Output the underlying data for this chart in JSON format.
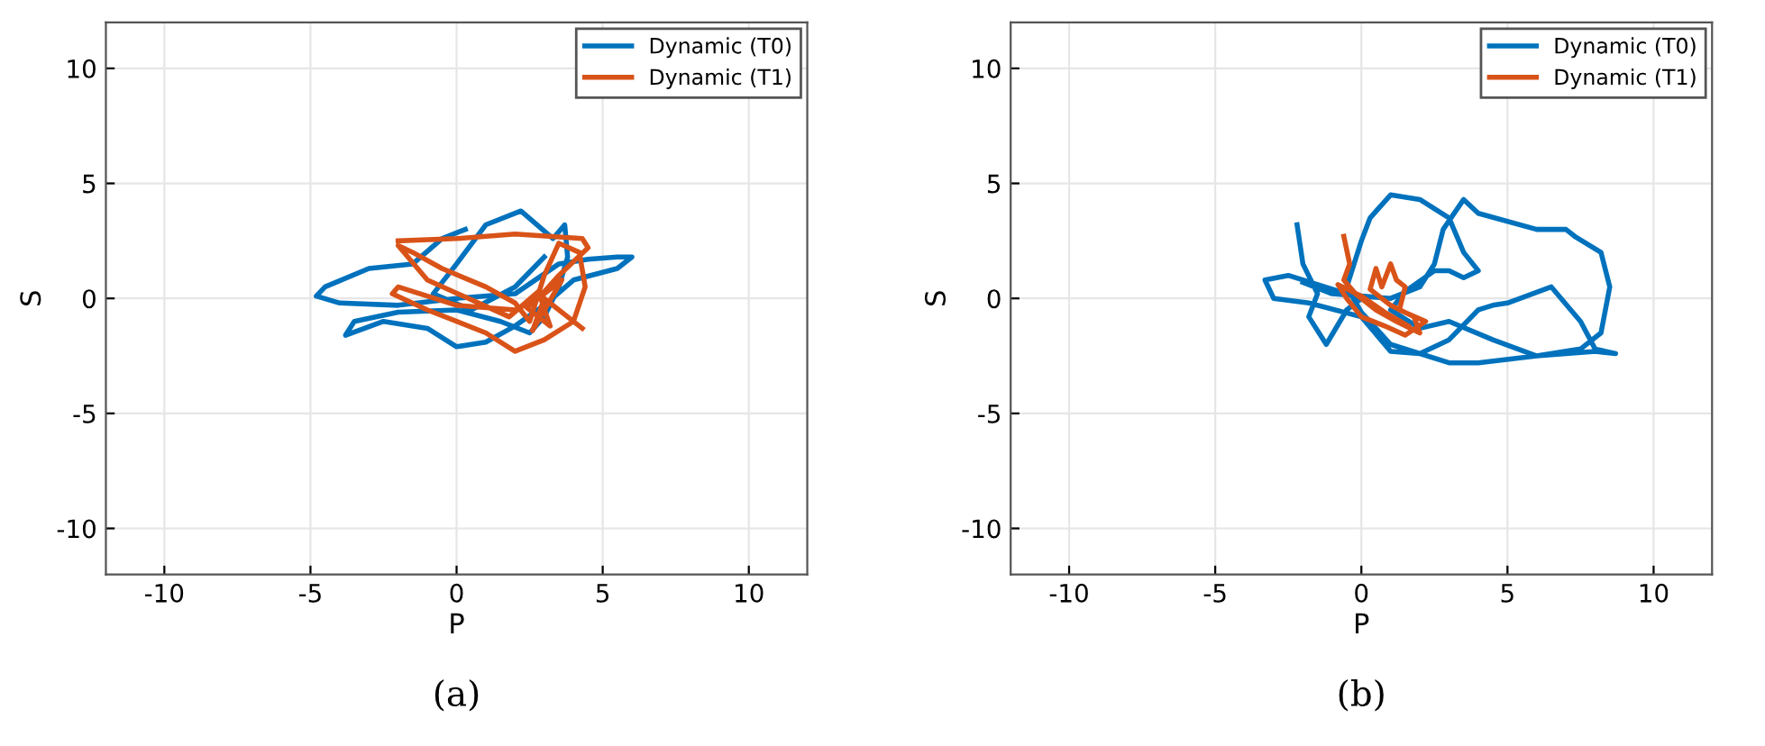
{
  "chart_data": [
    {
      "type": "line",
      "title": "(a)",
      "xlabel": "P",
      "ylabel": "S",
      "xlim": [
        -12,
        12
      ],
      "ylim": [
        -12,
        12
      ],
      "xticks": [
        -10,
        -5,
        0,
        5,
        10
      ],
      "yticks": [
        -10,
        -5,
        0,
        5,
        10
      ],
      "grid": true,
      "legend": "top right",
      "marker": "none",
      "line_style": "solid",
      "series": [
        {
          "name": "Dynamic (T0)",
          "color": "#0072bd",
          "x": [
            0.3,
            -0.5,
            -1.5,
            -3,
            -4.5,
            -4.8,
            -4,
            -2,
            0,
            2,
            3.5,
            4.5,
            5.5,
            6,
            5.5,
            4,
            3,
            2,
            1,
            0,
            -1,
            -2.5,
            -3.8,
            -3.5,
            -2,
            0,
            1.5,
            2.5,
            3,
            3.5,
            3.8,
            3.7,
            3.3,
            2.2,
            1,
            0,
            -0.8,
            0.5,
            2,
            3
          ],
          "values": [
            3.0,
            2.6,
            1.5,
            1.3,
            0.5,
            0.1,
            -0.2,
            -0.3,
            0,
            0.2,
            1.5,
            1.7,
            1.8,
            1.8,
            1.3,
            0.8,
            -0.3,
            -1.2,
            -1.9,
            -2.1,
            -1.3,
            -1.0,
            -1.6,
            -1.0,
            -0.6,
            -0.5,
            -1.0,
            -1.5,
            -0.8,
            0.5,
            1.8,
            3.2,
            2.6,
            3.8,
            3.2,
            1.5,
            0.2,
            -0.5,
            0.5,
            1.8
          ]
        },
        {
          "name": "Dynamic (T1)",
          "color": "#d95319",
          "x": [
            -2,
            0,
            2,
            4.3,
            4.5,
            3.5,
            2.8,
            2,
            0,
            -2,
            -2.2,
            -1,
            1,
            2,
            3,
            4,
            4.4,
            4.2,
            3.5,
            3,
            2.5,
            2,
            1,
            -0.5,
            -1.5,
            -2,
            -1,
            1.8,
            2.8,
            3.2,
            2.4,
            3.6,
            2.6,
            3,
            4.3
          ],
          "values": [
            2.5,
            2.6,
            2.8,
            2.6,
            2.2,
            1,
            0,
            -0.5,
            -0.3,
            0.5,
            0.2,
            -0.5,
            -1.5,
            -2.3,
            -1.8,
            -1,
            0.5,
            2,
            2.4,
            1,
            -1,
            -0.2,
            0.5,
            1.3,
            2,
            2.3,
            0.8,
            -0.8,
            0.3,
            -1.2,
            -0.4,
            0.8,
            -1.4,
            0,
            -1.3
          ]
        }
      ]
    },
    {
      "type": "line",
      "title": "(b)",
      "xlabel": "P",
      "ylabel": "S",
      "xlim": [
        -12,
        12
      ],
      "ylim": [
        -12,
        12
      ],
      "xticks": [
        -10,
        -5,
        0,
        5,
        10
      ],
      "yticks": [
        -10,
        -5,
        0,
        5,
        10
      ],
      "grid": true,
      "legend": "top right",
      "marker": "none",
      "line_style": "solid",
      "series": [
        {
          "name": "Dynamic (T0)",
          "color": "#0072bd",
          "x": [
            -2.2,
            -2,
            -1.5,
            -1.8,
            -1.2,
            -0.5,
            0,
            -2.5,
            -3.3,
            -3,
            -1.8,
            0,
            1,
            2,
            3,
            4,
            4.5,
            5,
            6.5,
            7.5,
            8,
            8.7,
            8,
            6,
            4,
            3,
            1,
            0,
            -0.5,
            0,
            0.3,
            1,
            2,
            3,
            3.5,
            4,
            3.5,
            3,
            2.5,
            1.5,
            1,
            2,
            3,
            4.5,
            6,
            7.5,
            8.2,
            8.5,
            8.2,
            7.3,
            7,
            6,
            4,
            3.5,
            2.8,
            2.5,
            2,
            1,
            -1,
            -2
          ],
          "values": [
            3.2,
            1.5,
            0.2,
            -0.8,
            -2,
            -0.5,
            0,
            1,
            0.8,
            0,
            -0.2,
            -0.8,
            -2.3,
            -2.4,
            -1.8,
            -0.5,
            -0.3,
            -0.2,
            0.5,
            -1,
            -2.2,
            -2.4,
            -2.3,
            -2.5,
            -2.8,
            -2.8,
            -2,
            -0.6,
            0.5,
            2.5,
            3.5,
            4.5,
            4.3,
            3.5,
            2,
            1.2,
            0.9,
            1.2,
            1.2,
            0.3,
            -0.5,
            -1.3,
            -1,
            -1.8,
            -2.5,
            -2.2,
            -1.5,
            0.5,
            2,
            2.7,
            3,
            3,
            3.7,
            4.3,
            3,
            1.5,
            0.5,
            0,
            0.2,
            0.7
          ]
        },
        {
          "name": "Dynamic (T1)",
          "color": "#d95319",
          "x": [
            -0.6,
            -0.4,
            -0.6,
            -0.2,
            0.5,
            1.2,
            2,
            1.8,
            1,
            0.3,
            0.5,
            0.7,
            1,
            1.2,
            1.5,
            1.3,
            2.2,
            1.5,
            0.8,
            0,
            -0.5,
            -0.8,
            0,
            0.8,
            1.6
          ],
          "values": [
            2.7,
            1.5,
            0.8,
            0.2,
            -0.5,
            -1,
            -1.5,
            -0.8,
            -0.3,
            0.4,
            1.3,
            0.5,
            1.5,
            0.8,
            0.5,
            -0.5,
            -1,
            -1.6,
            -1.2,
            -0.8,
            0,
            0.6,
            0.1,
            -0.6,
            -1.2
          ]
        }
      ]
    }
  ]
}
